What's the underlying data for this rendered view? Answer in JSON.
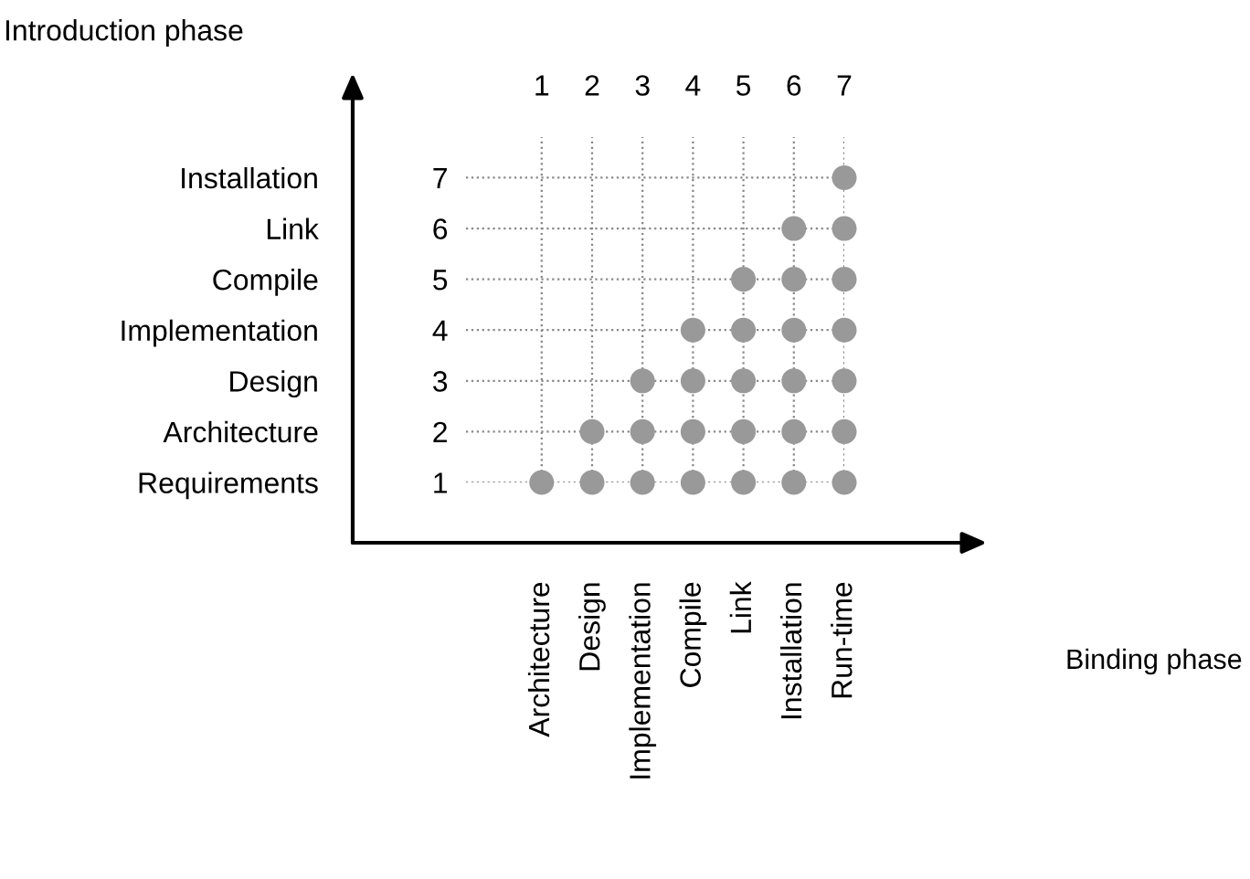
{
  "chart_data": {
    "type": "scatter",
    "annotations": [
      "Introduction phase",
      "Binding phase"
    ],
    "categories": [
      "Architecture",
      "Design",
      "Implementation",
      "Compile",
      "Link",
      "Installation",
      "Run-time"
    ],
    "x2lim": [
      -0.5,
      7
    ],
    "x2ticks": [
      1,
      2,
      3,
      4,
      5,
      6,
      7
    ],
    "ylim": [
      1,
      7.8
    ],
    "yticks": [
      1,
      2,
      3,
      4,
      5,
      6,
      7
    ],
    "y_categories": [
      "Installation",
      "Link",
      "Compile",
      "Implementation",
      "Design",
      "Architecture",
      "Requirements"
    ],
    "grid": true,
    "line_style": "dotted",
    "marker": "circle",
    "series": [
      {
        "color": "#999999",
        "values": [
          1,
          1,
          1,
          1,
          1,
          1,
          1
        ]
      },
      {
        "color": "#999999",
        "values": [
          null,
          2,
          2,
          2,
          2,
          2,
          2
        ]
      },
      {
        "color": "#999999",
        "values": [
          null,
          null,
          3,
          3,
          3,
          3,
          3
        ]
      },
      {
        "color": "#999999",
        "values": [
          null,
          null,
          null,
          4,
          4,
          4,
          4
        ]
      },
      {
        "color": "#999999",
        "values": [
          null,
          null,
          null,
          null,
          5,
          5,
          5
        ]
      },
      {
        "color": "#999999",
        "values": [
          null,
          null,
          null,
          null,
          null,
          6,
          6
        ]
      },
      {
        "color": "#999999",
        "values": [
          null,
          null,
          null,
          null,
          null,
          null,
          7
        ]
      }
    ]
  }
}
